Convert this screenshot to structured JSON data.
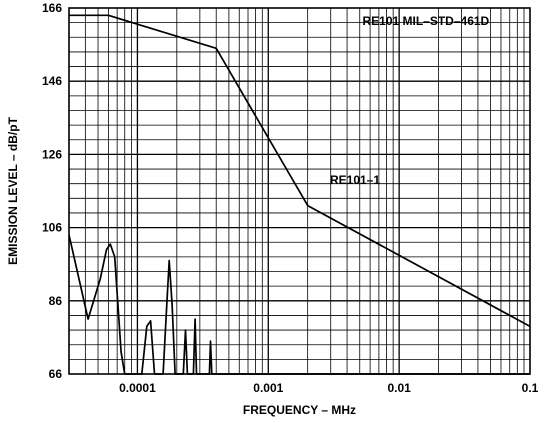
{
  "chart_data": {
    "type": "line",
    "title": "RE101  MIL–STD–461D",
    "xlabel": "FREQUENCY – MHz",
    "ylabel": "EMISSION LEVEL – dB/pT",
    "xscale": "log",
    "xlim": [
      3e-05,
      0.1
    ],
    "ylim": [
      66,
      166
    ],
    "grid": true,
    "x_ticks": [
      {
        "value": 0.0001,
        "label": "0.0001"
      },
      {
        "value": 0.001,
        "label": "0.001"
      },
      {
        "value": 0.01,
        "label": "0.01"
      },
      {
        "value": 0.1,
        "label": "0.1"
      }
    ],
    "y_ticks": [
      {
        "value": 66,
        "label": "66"
      },
      {
        "value": 86,
        "label": "86"
      },
      {
        "value": 106,
        "label": "106"
      },
      {
        "value": 126,
        "label": "126"
      },
      {
        "value": 146,
        "label": "146"
      },
      {
        "value": 166,
        "label": "166"
      }
    ],
    "series": [
      {
        "name": "RE101–1",
        "style": "limit",
        "x": [
          3e-05,
          6e-05,
          0.0004,
          0.002,
          0.1
        ],
        "y": [
          164,
          164,
          155,
          112,
          79
        ]
      },
      {
        "name": "",
        "style": "emission",
        "x": [
          3e-05,
          4.2e-05,
          5.2e-05,
          5.8e-05,
          6.2e-05,
          6.7e-05,
          7.5e-05,
          8e-05,
          0.000108,
          0.000118,
          0.000126,
          0.000135,
          0.000157,
          0.000167,
          0.000175,
          0.000184,
          0.000194,
          0.000224,
          0.000233,
          0.000241,
          0.000268,
          0.000276,
          0.000283,
          0.000355,
          0.000362,
          0.00037,
          0.1
        ],
        "y": [
          104,
          81,
          92,
          100,
          101.5,
          98,
          72,
          66,
          66,
          79,
          80.5,
          66,
          66,
          84,
          97,
          85,
          66,
          66,
          78,
          66,
          66,
          81,
          66,
          66,
          75,
          66,
          66
        ]
      }
    ],
    "annotations": [
      {
        "text": "RE101  MIL–STD–461D",
        "x": 0.016,
        "y": 162.5
      },
      {
        "text": "RE101–1",
        "x": 0.0046,
        "y": 119
      }
    ]
  }
}
